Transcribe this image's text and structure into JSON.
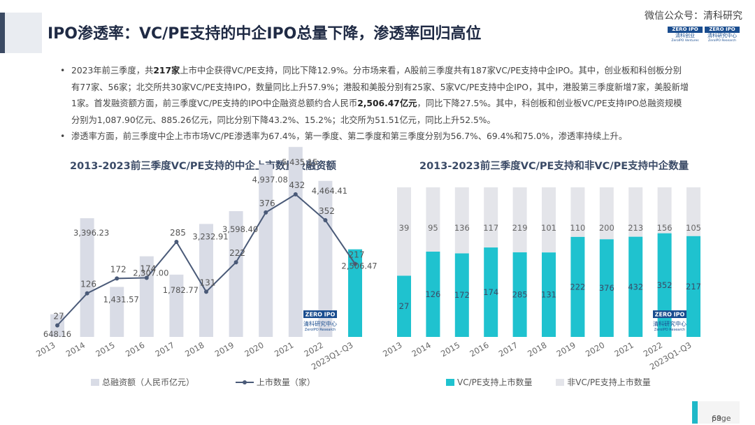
{
  "page": {
    "title": "IPO渗透率：VC/PE支持的中企IPO总量下降，渗透率回归高位",
    "watermark": "微信公众号：清科研究",
    "page_label": "page",
    "page_number": "69"
  },
  "logo": {
    "line1": "ZERO IPO",
    "line2": "清科创业",
    "line3": "ZeroIPO Ventures",
    "alt_line2": "清科研究中心",
    "alt_line3": "ZeroIPO Research"
  },
  "bullets": [
    {
      "p1": "2023年前三季度，共",
      "b1": "217家",
      "p2": "上市中企获得VC/PE支持，同比下降12.9%。分市场来看，A股前三季度共有187家VC/PE支持中企IPO。其中，创业板和科创板分别有77家、56家；北交所共30家VC/PE支持IPO，数量同比上升57.9%；港股和美股分别有25家、5家VC/PE支持中企IPO，其中，港股第三季度新增7家，美股新增1家。首发融资额方面，前三季度VC/PE支持的IPO中企融资总额约合人民币",
      "b2": "2,506.47亿元",
      "p3": "，同比下降27.5%。其中，科创板和创业板VC/PE支持IPO总融资规模分别为1,087.90亿元、885.26亿元，同比分别下降43.2%、15.2%；北交所为51.51亿元，同比上升52.5%。"
    },
    {
      "p1": "渗透率方面，前三季度中企上市市场VC/PE渗透率为67.4%，第一季度、第二季度和第三季度分别为56.7%、69.4%和75.0%，渗透率持续上升。"
    }
  ],
  "chart_data": [
    {
      "type": "bar",
      "title": "2013-2023前三季度VC/PE支持的中企上市数量及融资额",
      "categories": [
        "2013",
        "2014",
        "2015",
        "2016",
        "2017",
        "2018",
        "2019",
        "2020",
        "2021",
        "2022",
        "2023Q1-Q3"
      ],
      "series": [
        {
          "name": "总融资额（人民币亿元）",
          "kind": "bar",
          "values": [
            648.16,
            3396.23,
            1431.57,
            2307.0,
            1782.77,
            3232.91,
            3598.4,
            4937.08,
            5435.15,
            4464.41,
            2506.47
          ],
          "labels": [
            "648.16",
            "3,396.23",
            "1,431.57",
            "2,307.00",
            "1,782.77",
            "3,232.91",
            "3,598.40",
            "4,937.08",
            "5,435.15",
            "4,464.41",
            "2,506.47"
          ],
          "color": "#d9dce6",
          "highlight_color": "#1fc2cf"
        },
        {
          "name": "上市数量（家）",
          "kind": "line",
          "values": [
            27,
            126,
            172,
            174,
            285,
            131,
            222,
            376,
            432,
            352,
            217
          ],
          "color": "#4a5a78"
        }
      ],
      "colors": {
        "axis_label": "#666666",
        "value_label": "#555555"
      }
    },
    {
      "type": "bar",
      "stacked": true,
      "title": "2013-2023前三季度VC/PE支持和非VC/PE支持中企数量",
      "categories": [
        "2013",
        "2014",
        "2015",
        "2016",
        "2017",
        "2018",
        "2019",
        "2020",
        "2021",
        "2022",
        "2023Q1-Q3"
      ],
      "series": [
        {
          "name": "VC/PE支持上市数量",
          "values": [
            27,
            126,
            172,
            174,
            285,
            131,
            222,
            376,
            432,
            352,
            217
          ],
          "color": "#1fc2cf"
        },
        {
          "name": "非VC/PE支持上市数量",
          "values": [
            39,
            95,
            136,
            117,
            219,
            101,
            110,
            200,
            213,
            156,
            105
          ],
          "color": "#e4e5ea"
        }
      ]
    }
  ]
}
